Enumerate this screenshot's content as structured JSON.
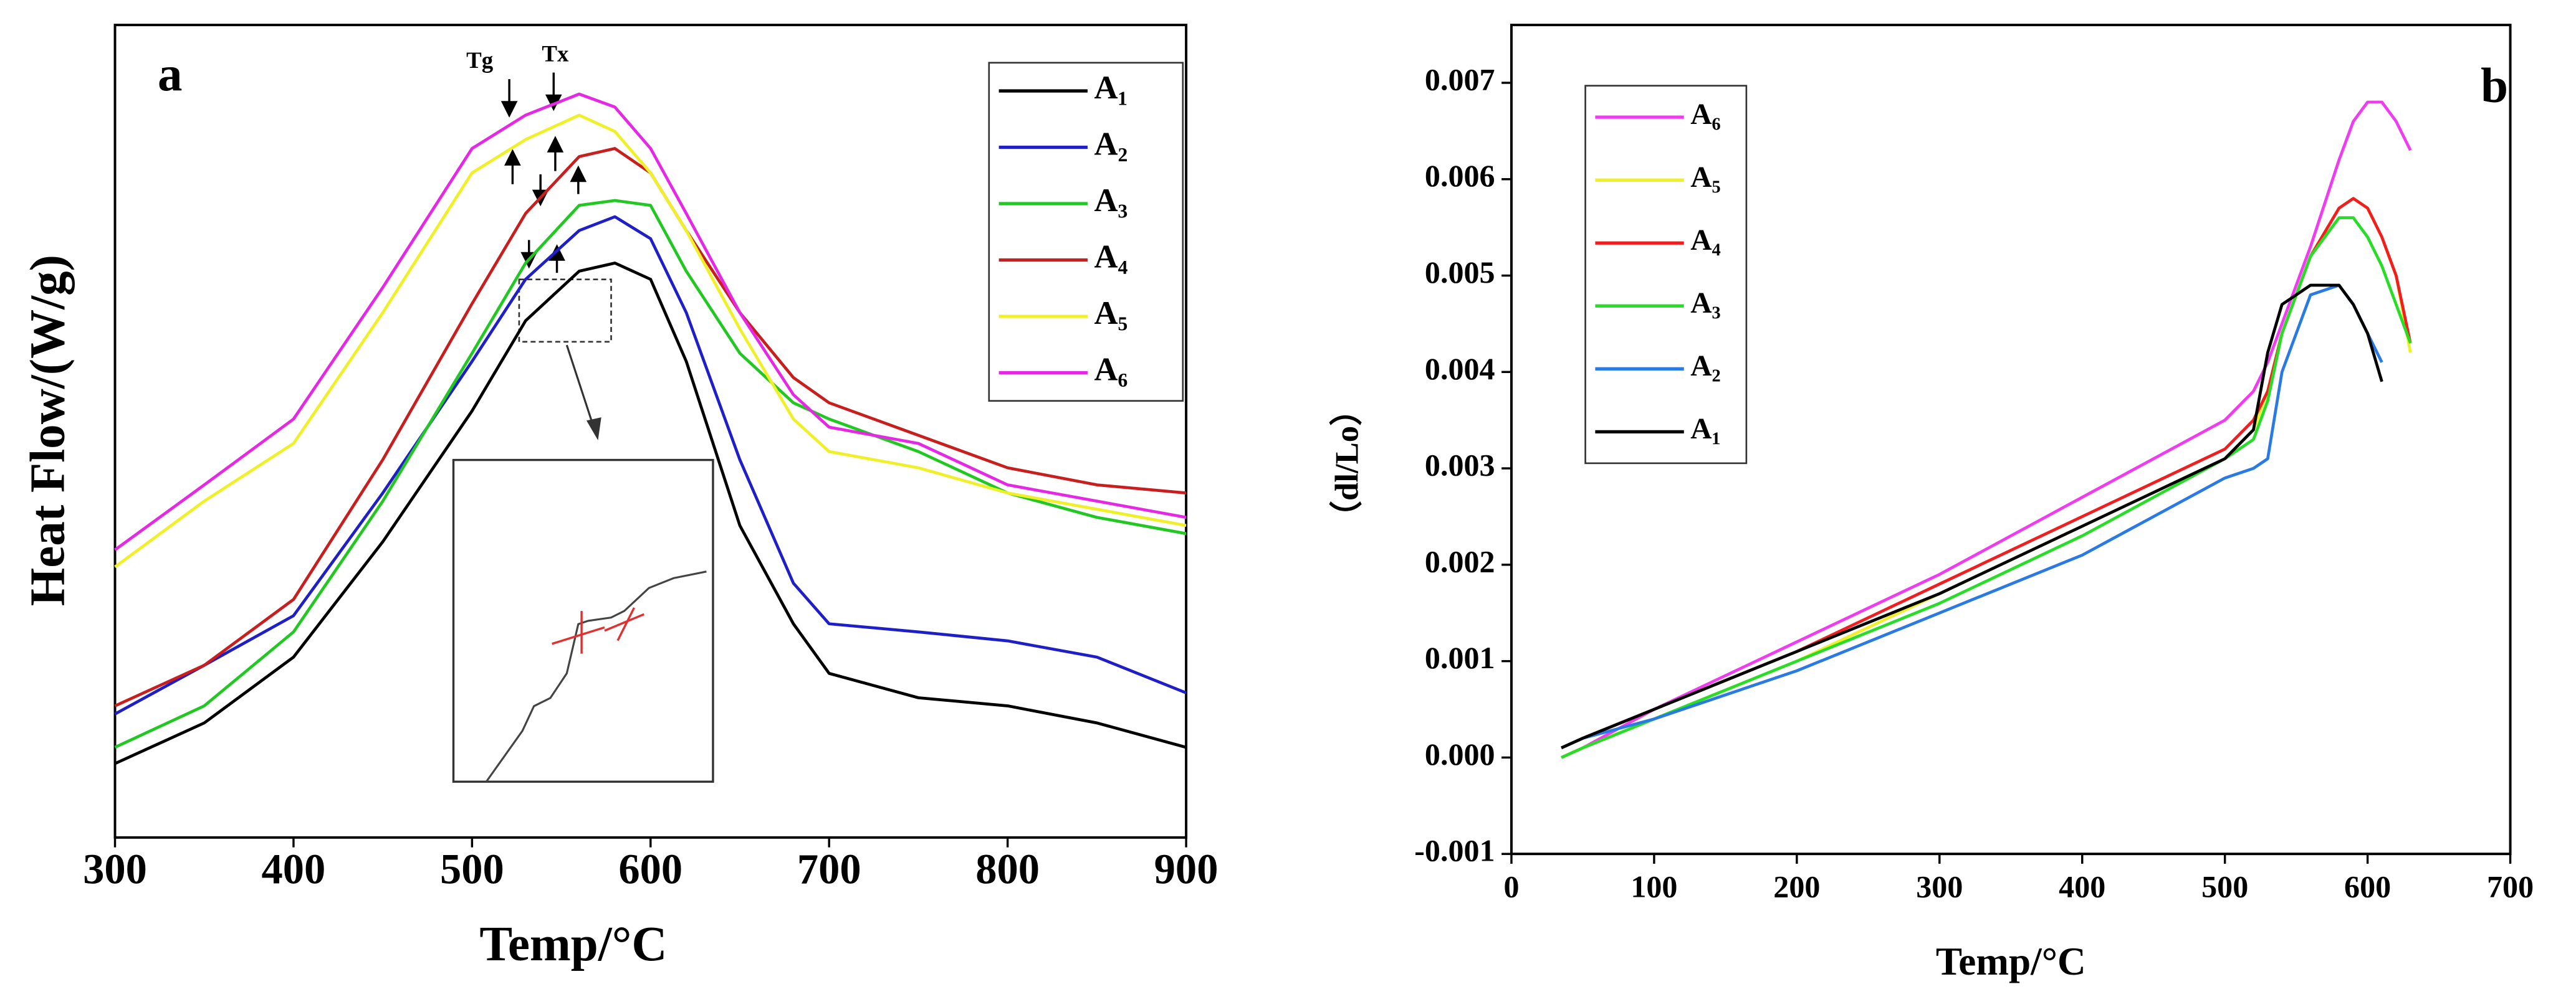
{
  "chart_data": [
    {
      "type": "line",
      "label": "a",
      "annotations": [
        "Tg",
        "Tx"
      ],
      "xlabel": "Temp/°C",
      "ylabel": "Heat Flow/(W/g)",
      "xlim": [
        300,
        900
      ],
      "xticks": [
        300,
        400,
        500,
        600,
        700,
        800,
        900
      ],
      "ylim": [
        0,
        10
      ],
      "x": [
        300,
        350,
        400,
        450,
        500,
        530,
        560,
        580,
        600,
        620,
        650,
        680,
        700,
        750,
        800,
        850,
        900
      ],
      "legend": "upper right",
      "series": [
        {
          "name": "A₁",
          "color": "#000000",
          "values": [
            0.91,
            1.41,
            2.22,
            3.64,
            5.25,
            6.36,
            6.97,
            7.07,
            6.87,
            5.86,
            3.84,
            2.63,
            2.02,
            1.72,
            1.62,
            1.41,
            1.11
          ]
        },
        {
          "name": "A₂",
          "color": "#1f1fc8",
          "values": [
            1.52,
            2.12,
            2.73,
            4.24,
            5.86,
            6.87,
            7.47,
            7.64,
            7.37,
            6.46,
            4.65,
            3.13,
            2.63,
            2.53,
            2.42,
            2.22,
            1.78
          ]
        },
        {
          "name": "A₃",
          "color": "#22c822",
          "values": [
            1.11,
            1.62,
            2.53,
            4.14,
            5.96,
            7.07,
            7.78,
            7.84,
            7.78,
            6.97,
            5.96,
            5.35,
            5.15,
            4.75,
            4.24,
            3.94,
            3.74
          ]
        },
        {
          "name": "A₄",
          "color": "#c81e1e",
          "values": [
            1.62,
            2.12,
            2.93,
            4.65,
            6.57,
            7.68,
            8.38,
            8.48,
            8.18,
            7.47,
            6.46,
            5.66,
            5.35,
            4.95,
            4.55,
            4.34,
            4.24
          ]
        },
        {
          "name": "A₅",
          "color": "#f0f028",
          "values": [
            3.33,
            4.14,
            4.85,
            6.46,
            8.18,
            8.59,
            8.89,
            8.69,
            8.18,
            7.47,
            6.26,
            5.15,
            4.75,
            4.55,
            4.24,
            4.04,
            3.84
          ]
        },
        {
          "name": "A₆",
          "color": "#e628e6",
          "values": [
            3.54,
            4.34,
            5.15,
            6.77,
            8.48,
            8.89,
            9.15,
            8.99,
            8.48,
            7.68,
            6.46,
            5.45,
            5.05,
            4.85,
            4.34,
            4.14,
            3.94
          ]
        }
      ]
    },
    {
      "type": "line",
      "label": "b",
      "xlabel": "Temp/°C",
      "ylabel": "（dl/Lo）",
      "xlim": [
        0,
        700
      ],
      "xticks": [
        0,
        100,
        200,
        300,
        400,
        500,
        600,
        700
      ],
      "ylim": [
        -0.001,
        0.0076
      ],
      "yticks": [
        -0.001,
        {
          "value": 0,
          "label": "0.000"
        },
        0.001,
        0.002,
        0.003,
        0.004,
        0.005,
        0.006,
        0.007
      ],
      "x": [
        35,
        50,
        100,
        200,
        300,
        400,
        500,
        520,
        530,
        540,
        560,
        580,
        590,
        600,
        610,
        620,
        630
      ],
      "legend": "upper left",
      "series": [
        {
          "name": "A₆",
          "color": "#f03cf0",
          "values": [
            0.0,
            0.0001,
            0.0005,
            0.0012,
            0.0019,
            0.0027,
            0.0035,
            0.0038,
            0.0041,
            0.0045,
            0.0053,
            0.0062,
            0.0066,
            0.0068,
            0.0068,
            0.0066,
            0.0063
          ]
        },
        {
          "name": "A₅",
          "color": "#f0f028",
          "values": [
            0.0,
            0.0001,
            0.0004,
            0.001,
            0.0017,
            0.0024,
            0.0031,
            0.0034,
            0.0038,
            0.0044,
            0.0052,
            0.0057,
            0.0058,
            0.0057,
            0.0054,
            0.005,
            0.0042
          ]
        },
        {
          "name": "A₄",
          "color": "#f01e1e",
          "values": [
            0.0001,
            0.0002,
            0.0005,
            0.0011,
            0.0018,
            0.0025,
            0.0032,
            0.0035,
            0.0038,
            0.0044,
            0.0052,
            0.0057,
            0.0058,
            0.0057,
            0.0054,
            0.005,
            0.0043
          ]
        },
        {
          "name": "A₃",
          "color": "#28dc28",
          "values": [
            0.0,
            0.0001,
            0.0004,
            0.001,
            0.0016,
            0.0023,
            0.0031,
            0.0033,
            0.0037,
            0.0044,
            0.0052,
            0.0056,
            0.0056,
            0.0054,
            0.0051,
            0.0047,
            0.0043
          ]
        },
        {
          "name": "A₂",
          "color": "#2a7ae6",
          "values": [
            0.0001,
            0.0002,
            0.0004,
            0.0009,
            0.0015,
            0.0021,
            0.0029,
            0.003,
            0.0031,
            0.004,
            0.0048,
            0.0049,
            0.0047,
            0.0044,
            0.0041,
            null,
            null
          ]
        },
        {
          "name": "A₁",
          "color": "#000000",
          "values": [
            0.0001,
            0.0002,
            0.0005,
            0.0011,
            0.0017,
            0.0024,
            0.0031,
            0.0034,
            0.0042,
            0.0047,
            0.0049,
            0.0049,
            0.0047,
            0.0044,
            0.0039,
            null,
            null
          ]
        }
      ]
    }
  ]
}
